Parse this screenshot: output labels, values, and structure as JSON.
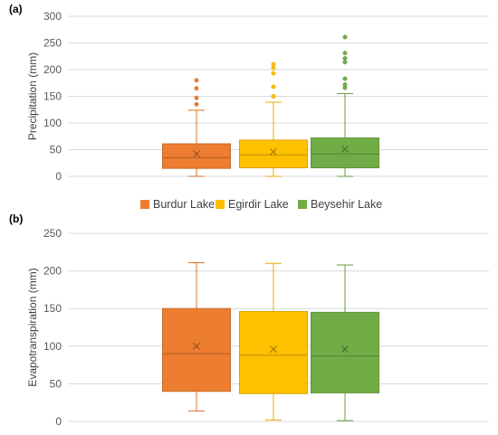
{
  "chart_data": [
    {
      "type": "box",
      "panel_label": "(a)",
      "ylabel": "Precipitation (mm)",
      "ylim": [
        0,
        300
      ],
      "yticks": [
        0,
        50,
        100,
        150,
        200,
        250,
        300
      ],
      "grid": true,
      "series": [
        {
          "name": "Burdur Lake",
          "color": "#ED7D31",
          "min": 0,
          "q1": 15,
          "median": 35,
          "q3": 61,
          "max": 124,
          "mean": 42,
          "outliers": [
            135,
            147,
            165,
            180
          ]
        },
        {
          "name": "Egirdir Lake",
          "color": "#FFC000",
          "min": 0,
          "q1": 16,
          "median": 40,
          "q3": 68,
          "max": 139,
          "mean": 46,
          "outliers": [
            150,
            168,
            193,
            203,
            210
          ]
        },
        {
          "name": "Beysehir Lake",
          "color": "#70AD47",
          "min": 0,
          "q1": 16,
          "median": 42,
          "q3": 72,
          "max": 155,
          "mean": 51,
          "outliers": [
            166,
            172,
            183,
            214,
            221,
            231,
            261
          ]
        }
      ]
    },
    {
      "type": "box",
      "panel_label": "(b)",
      "ylabel": "Evapotranspiration (mm)",
      "ylim": [
        0,
        250
      ],
      "yticks": [
        0,
        50,
        100,
        150,
        200,
        250
      ],
      "grid": true,
      "series": [
        {
          "name": "Burdur Lake",
          "color": "#ED7D31",
          "min": 14,
          "q1": 40,
          "median": 90,
          "q3": 150,
          "max": 211,
          "mean": 100,
          "outliers": []
        },
        {
          "name": "Egirdir Lake",
          "color": "#FFC000",
          "min": 2,
          "q1": 37,
          "median": 88,
          "q3": 146,
          "max": 210,
          "mean": 96,
          "outliers": []
        },
        {
          "name": "Beysehir Lake",
          "color": "#70AD47",
          "min": 1,
          "q1": 38,
          "median": 87,
          "q3": 145,
          "max": 208,
          "mean": 96,
          "outliers": []
        }
      ]
    }
  ],
  "legend": {
    "placement": "between-panels",
    "items": [
      {
        "name": "Burdur Lake",
        "color": "#ED7D31"
      },
      {
        "name": "Egirdir Lake",
        "color": "#FFC000"
      },
      {
        "name": "Beysehir Lake",
        "color": "#70AD47"
      }
    ]
  }
}
